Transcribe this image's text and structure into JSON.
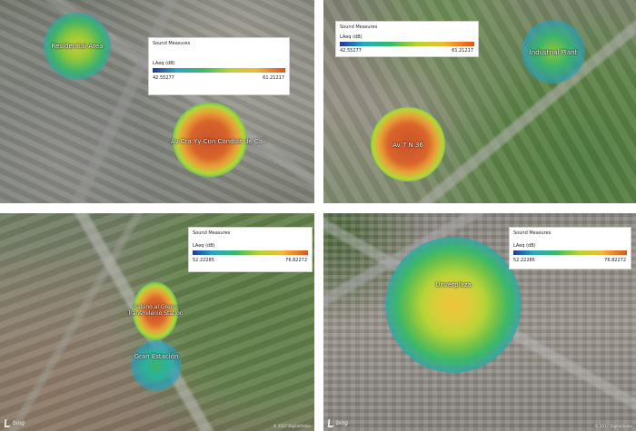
{
  "legend_common": {
    "title": "Sound Measures",
    "unit": "LAeq (dB)"
  },
  "panels": [
    {
      "legend": {
        "min": "42.55277",
        "max": "61.21217"
      },
      "sources": [
        {
          "label": "Residential Area",
          "level": 0.55
        },
        {
          "label": "Av Cra Yy Con Conduit de Cali",
          "level": 0.95
        }
      ]
    },
    {
      "legend": {
        "min": "42.55277",
        "max": "61.21217"
      },
      "sources": [
        {
          "label": "Industrial Plant",
          "level": 0.45
        },
        {
          "label": "Av 7 N 36",
          "level": 0.95
        }
      ]
    },
    {
      "legend": {
        "min": "52.22285",
        "max": "76.82272"
      },
      "sources": [
        {
          "label": "Sabino al Greco Transmilenio Station",
          "level": 0.95
        },
        {
          "label": "Gran Estación",
          "level": 0.55
        }
      ]
    },
    {
      "legend": {
        "min": "52.22285",
        "max": "76.82272"
      },
      "sources": [
        {
          "label": "Unverplaza",
          "level": 0.75
        }
      ]
    }
  ],
  "attribution": {
    "brand": "bing",
    "copyright": "© 2017 DigitalGlobe"
  }
}
